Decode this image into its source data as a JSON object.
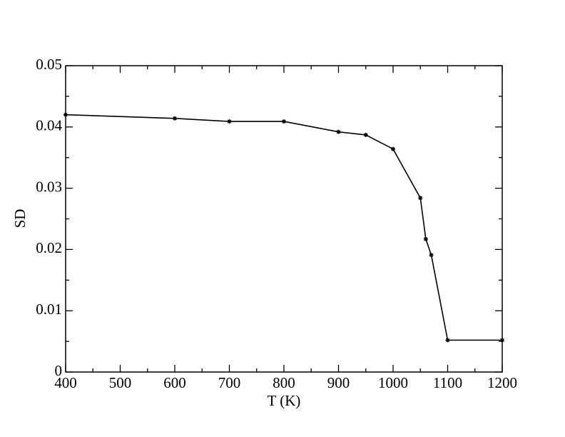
{
  "chart_data": {
    "type": "line",
    "x_label": "T (K)",
    "y_label": "SD",
    "x": [
      400,
      600,
      700,
      800,
      900,
      950,
      1000,
      1050,
      1060,
      1070,
      1100,
      1200
    ],
    "series": [
      {
        "color": "#000000",
        "values": [
          0.042,
          0.0414,
          0.0409,
          0.0409,
          0.0392,
          0.0387,
          0.0364,
          0.0284,
          0.0217,
          0.0191,
          0.0052,
          0.0052
        ]
      }
    ],
    "xlim": [
      400,
      1200
    ],
    "xticks": [
      400,
      500,
      600,
      700,
      800,
      900,
      1000,
      1100,
      1200
    ],
    "ylim": [
      0,
      0.05
    ],
    "yticks": [
      0,
      0.01,
      0.02,
      0.03,
      0.04,
      0.05
    ],
    "grid": false
  }
}
